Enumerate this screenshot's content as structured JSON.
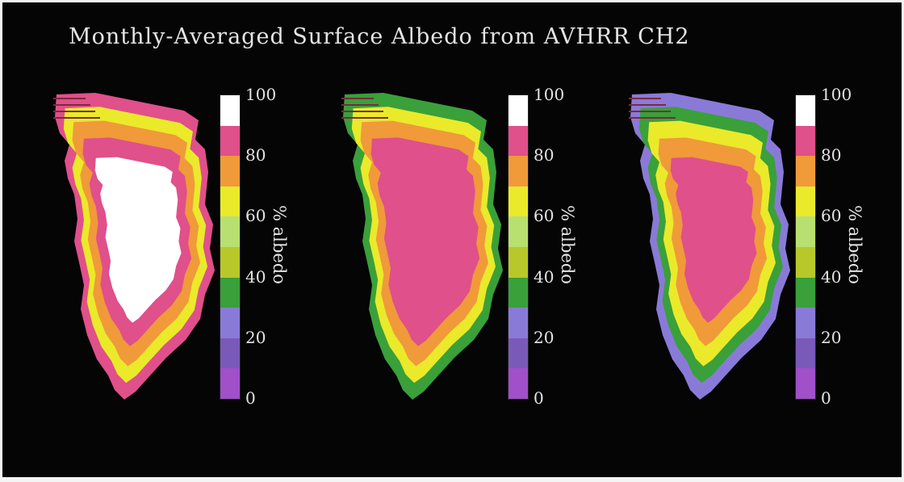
{
  "title": "Monthly-Averaged Surface Albedo from AVHRR CH2",
  "colorbar": {
    "label": "% albedo",
    "ticks": [
      "100",
      "80",
      "60",
      "40",
      "20",
      "0"
    ],
    "range": [
      0,
      100
    ],
    "bins": [
      {
        "range": [
          90,
          100
        ],
        "color": "#ffffff"
      },
      {
        "range": [
          80,
          90
        ],
        "color": "#e0508a"
      },
      {
        "range": [
          70,
          80
        ],
        "color": "#f09a3a"
      },
      {
        "range": [
          60,
          70
        ],
        "color": "#eaea2a"
      },
      {
        "range": [
          50,
          60
        ],
        "color": "#b8e070"
      },
      {
        "range": [
          40,
          50
        ],
        "color": "#b8c82a"
      },
      {
        "range": [
          30,
          40
        ],
        "color": "#3aa03a"
      },
      {
        "range": [
          20,
          30
        ],
        "color": "#8a7ad8"
      },
      {
        "range": [
          10,
          20
        ],
        "color": "#7a5ab8"
      },
      {
        "range": [
          0,
          10
        ],
        "color": "#a050c8"
      }
    ]
  },
  "panels": [
    {
      "name": "panel-1",
      "zone_colors": [
        "#e0508a",
        "#eaea2a",
        "#f09a3a",
        "#e0508a",
        "#ffffff"
      ]
    },
    {
      "name": "panel-2",
      "zone_colors": [
        "#3aa03a",
        "#eaea2a",
        "#f09a3a",
        "#e0508a",
        "#e0508a"
      ]
    },
    {
      "name": "panel-3",
      "zone_colors": [
        "#8a7ad8",
        "#3aa03a",
        "#eaea2a",
        "#f09a3a",
        "#e0508a"
      ]
    }
  ]
}
